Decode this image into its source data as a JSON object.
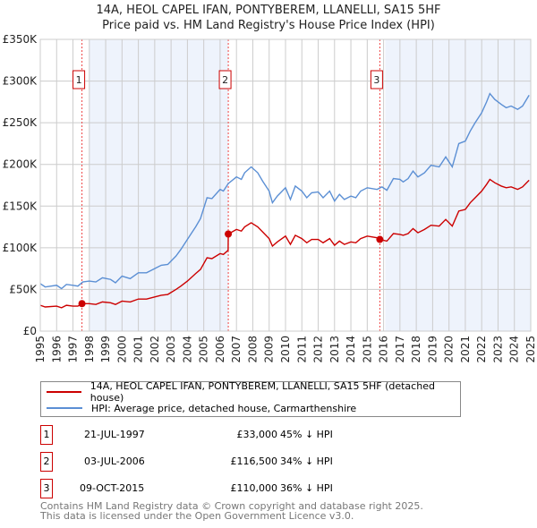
{
  "chart_data": {
    "type": "line",
    "title": "14A, HEOL CAPEL IFAN, PONTYBEREM, LLANELLI, SA15 5HF",
    "subtitle": "Price paid vs. HM Land Registry's House Price Index (HPI)",
    "xlim": [
      1995,
      2025
    ],
    "ylim": [
      0,
      350000
    ],
    "yticks": [
      {
        "v": 0,
        "label": "£0"
      },
      {
        "v": 50000,
        "label": "£50K"
      },
      {
        "v": 100000,
        "label": "£100K"
      },
      {
        "v": 150000,
        "label": "£150K"
      },
      {
        "v": 200000,
        "label": "£200K"
      },
      {
        "v": 250000,
        "label": "£250K"
      },
      {
        "v": 300000,
        "label": "£300K"
      },
      {
        "v": 350000,
        "label": "£350K"
      }
    ],
    "xticks": [
      "1995",
      "1996",
      "1997",
      "1998",
      "1999",
      "2000",
      "2001",
      "2002",
      "2003",
      "2004",
      "2005",
      "2006",
      "2007",
      "2008",
      "2009",
      "2010",
      "2011",
      "2012",
      "2013",
      "2014",
      "2015",
      "2016",
      "2017",
      "2018",
      "2019",
      "2020",
      "2021",
      "2022",
      "2023",
      "2024",
      "2025"
    ],
    "grid": true,
    "shaded_ranges": [
      [
        1998.0,
        2006.5
      ],
      [
        2016.1,
        2025
      ]
    ],
    "series": [
      {
        "name": "HPI: Average price, detached house, Carmarthenshire",
        "color": "#5b8fd4",
        "x": [
          1995,
          1995.3,
          1996,
          1996.3,
          1996.6,
          1997,
          1997.3,
          1997.6,
          1998,
          1998.4,
          1998.8,
          1999.3,
          1999.6,
          2000,
          2000.5,
          2001,
          2001.5,
          2002,
          2002.4,
          2002.8,
          2003.3,
          2003.6,
          2004,
          2004.5,
          2004.8,
          2005.2,
          2005.5,
          2006,
          2006.2,
          2006.5,
          2007,
          2007.3,
          2007.5,
          2007.9,
          2008.3,
          2008.6,
          2009,
          2009.2,
          2009.5,
          2010,
          2010.3,
          2010.6,
          2011,
          2011.3,
          2011.6,
          2012,
          2012.3,
          2012.7,
          2013,
          2013.3,
          2013.6,
          2014,
          2014.3,
          2014.6,
          2015,
          2015.6,
          2015.9,
          2016.2,
          2016.6,
          2017,
          2017.2,
          2017.5,
          2017.8,
          2018.1,
          2018.5,
          2018.9,
          2019.4,
          2019.8,
          2020.2,
          2020.6,
          2021,
          2021.3,
          2021.6,
          2022,
          2022.3,
          2022.5,
          2022.8,
          2023.2,
          2023.5,
          2023.8,
          2024.2,
          2024.5,
          2024.9
        ],
        "y": [
          57,
          53,
          55,
          51,
          56,
          55,
          54,
          59,
          60,
          59,
          64,
          62,
          58,
          66,
          63,
          70,
          70,
          75,
          79,
          80,
          90,
          98,
          110,
          125,
          135,
          160,
          159,
          170,
          168,
          177,
          185,
          182,
          190,
          197,
          190,
          180,
          168,
          154,
          162,
          172,
          158,
          174,
          168,
          160,
          166,
          167,
          160,
          168,
          156,
          164,
          158,
          162,
          160,
          168,
          172,
          170,
          173,
          169,
          183,
          182,
          179,
          183,
          192,
          185,
          190,
          199,
          197,
          209,
          197,
          225,
          228,
          240,
          250,
          262,
          275,
          285,
          278,
          272,
          268,
          270,
          266,
          270,
          283
        ],
        "unit": "£K"
      },
      {
        "name": "14A, HEOL CAPEL IFAN, PONTYBEREM, LLANELLI, SA15 5HF (detached house)",
        "color": "#cc0000",
        "x": [
          1995,
          1995.3,
          1996,
          1996.3,
          1996.6,
          1997,
          1997.3,
          1997.55,
          1998,
          1998.4,
          1998.8,
          1999.3,
          1999.6,
          2000,
          2000.5,
          2001,
          2001.5,
          2002,
          2002.4,
          2002.8,
          2003.3,
          2003.6,
          2004,
          2004.5,
          2004.8,
          2005.2,
          2005.5,
          2006,
          2006.2,
          2006.49,
          2006.5,
          2007,
          2007.3,
          2007.5,
          2007.9,
          2008.3,
          2008.6,
          2009,
          2009.2,
          2009.5,
          2010,
          2010.3,
          2010.6,
          2011,
          2011.3,
          2011.6,
          2012,
          2012.3,
          2012.7,
          2013,
          2013.3,
          2013.6,
          2014,
          2014.3,
          2014.6,
          2015,
          2015.6,
          2015.77,
          2016.2,
          2016.6,
          2017,
          2017.2,
          2017.5,
          2017.8,
          2018.1,
          2018.5,
          2018.9,
          2019.4,
          2019.8,
          2020.2,
          2020.6,
          2021,
          2021.3,
          2021.6,
          2022,
          2022.3,
          2022.5,
          2022.8,
          2023.2,
          2023.5,
          2023.8,
          2024.2,
          2024.5,
          2024.9
        ],
        "y": [
          31,
          29,
          30,
          28,
          31,
          30,
          30,
          33,
          33,
          32,
          35,
          34,
          32,
          36,
          35,
          38.5,
          38.5,
          41,
          43,
          44,
          50,
          54,
          60,
          69,
          74,
          88,
          87,
          93,
          92,
          97,
          116.5,
          122,
          120,
          125,
          130,
          125,
          119,
          111,
          102,
          107,
          114,
          104,
          115,
          111,
          106,
          110,
          110,
          106,
          111,
          103,
          108,
          104,
          107,
          106,
          111,
          114,
          112,
          110,
          108,
          117,
          116,
          115,
          117,
          123,
          118,
          122,
          127,
          126,
          134,
          126,
          144,
          146,
          154,
          160,
          168,
          176,
          182,
          178,
          174,
          172,
          173,
          170,
          173,
          181
        ],
        "unit": "£K"
      }
    ],
    "sales": [
      {
        "id": "1",
        "x": 1997.55,
        "y": 33,
        "date": "21-JUL-1997",
        "price": "£33,000",
        "hpi": "45% ↓ HPI"
      },
      {
        "id": "2",
        "x": 2006.5,
        "y": 116.5,
        "date": "03-JUL-2006",
        "price": "£116,500",
        "hpi": "34% ↓ HPI"
      },
      {
        "id": "3",
        "x": 2015.77,
        "y": 110,
        "date": "09-OCT-2015",
        "price": "£110,000",
        "hpi": "36% ↓ HPI"
      }
    ]
  },
  "legend": {
    "property": "14A, HEOL CAPEL IFAN, PONTYBEREM, LLANELLI, SA15 5HF (detached house)",
    "hpi": "HPI: Average price, detached house, Carmarthenshire"
  },
  "footer": {
    "line1": "Contains HM Land Registry data © Crown copyright and database right 2025.",
    "line2": "This data is licensed under the Open Government Licence v3.0."
  }
}
